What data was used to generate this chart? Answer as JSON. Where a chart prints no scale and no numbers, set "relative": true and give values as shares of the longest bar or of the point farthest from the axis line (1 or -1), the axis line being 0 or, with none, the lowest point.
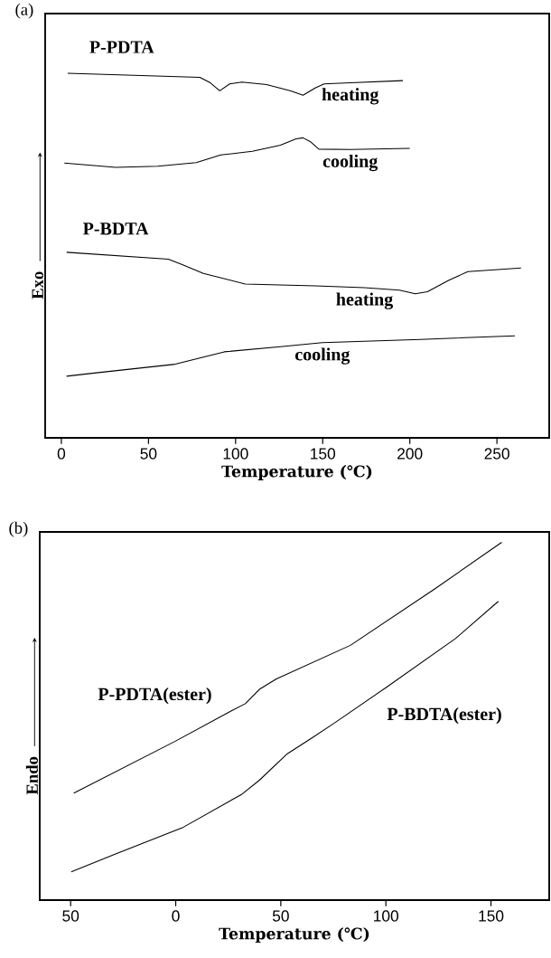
{
  "chart_data": [
    {
      "type": "line",
      "title": "(a)",
      "xlabel": "Temperature (℃)",
      "ylabel": "Exo",
      "relative": true,
      "xlim": [
        -9.3,
        280
      ],
      "xticks": [
        0,
        50,
        100,
        150,
        200,
        250
      ],
      "annotations": [
        "P-PDTA",
        "P-BDTA"
      ],
      "series": [
        {
          "name": "heating",
          "color": "#000000",
          "x": [
            3.6,
            79.5,
            85.5,
            90.9,
            96.6,
            103.6,
            117.8,
            131.7,
            138.7,
            145.7,
            150.8,
            165.8,
            196.0
          ],
          "values": [
            1.0,
            0.989,
            0.974,
            0.952,
            0.971,
            0.976,
            0.969,
            0.952,
            0.94,
            0.96,
            0.971,
            0.974,
            0.98
          ]
        },
        {
          "name": "cooling",
          "color": "#000000",
          "x": [
            1.7,
            31.2,
            55.3,
            77.4,
            91.5,
            109.6,
            125.7,
            134.7,
            138.7,
            142.8,
            147.8,
            165.8,
            200.0
          ],
          "values": [
            0.754,
            0.742,
            0.745,
            0.755,
            0.776,
            0.786,
            0.803,
            0.82,
            0.823,
            0.813,
            0.792,
            0.791,
            0.794
          ]
        },
        {
          "name": "heating",
          "color": "#000000",
          "x": [
            3.0,
            61.4,
            69.4,
            81.5,
            105.6,
            145.8,
            174.0,
            194.1,
            203.1,
            210.1,
            222.2,
            233.3,
            263.8
          ],
          "values": [
            0.509,
            0.49,
            0.475,
            0.451,
            0.422,
            0.417,
            0.412,
            0.405,
            0.395,
            0.401,
            0.432,
            0.456,
            0.466
          ]
        },
        {
          "name": "cooling",
          "color": "#000000",
          "x": [
            3.0,
            21.2,
            65.4,
            93.5,
            125.7,
            149.8,
            206.0,
            260.3
          ],
          "values": [
            0.169,
            0.179,
            0.202,
            0.236,
            0.25,
            0.261,
            0.27,
            0.28
          ]
        }
      ]
    },
    {
      "type": "line",
      "title": "(b)",
      "xlabel": "Temperature (℃)",
      "ylabel": "Endo",
      "relative": true,
      "xlim": [
        -64.7,
        177.7
      ],
      "xticks": [
        {
          "value": -50,
          "label": "50"
        },
        0,
        50,
        100,
        150
      ],
      "series": [
        {
          "name": "P-PDTA(ester)",
          "color": "#000000",
          "x": [
            -48.5,
            -0.2,
            26.5,
            33.1,
            39.8,
            47.9,
            83.1,
            123.1,
            155.1
          ],
          "values": [
            0.299,
            0.444,
            0.529,
            0.549,
            0.589,
            0.618,
            0.712,
            0.869,
            1.0
          ]
        },
        {
          "name": "P-BDTA(ester)",
          "color": "#000000",
          "x": [
            -49.7,
            -28.9,
            3.1,
            31.5,
            39.8,
            53.1,
            64.8,
            74.8,
            99.8,
            133.1,
            153.5
          ],
          "values": [
            0.079,
            0.128,
            0.202,
            0.296,
            0.335,
            0.409,
            0.453,
            0.492,
            0.593,
            0.731,
            0.835
          ]
        }
      ]
    }
  ]
}
